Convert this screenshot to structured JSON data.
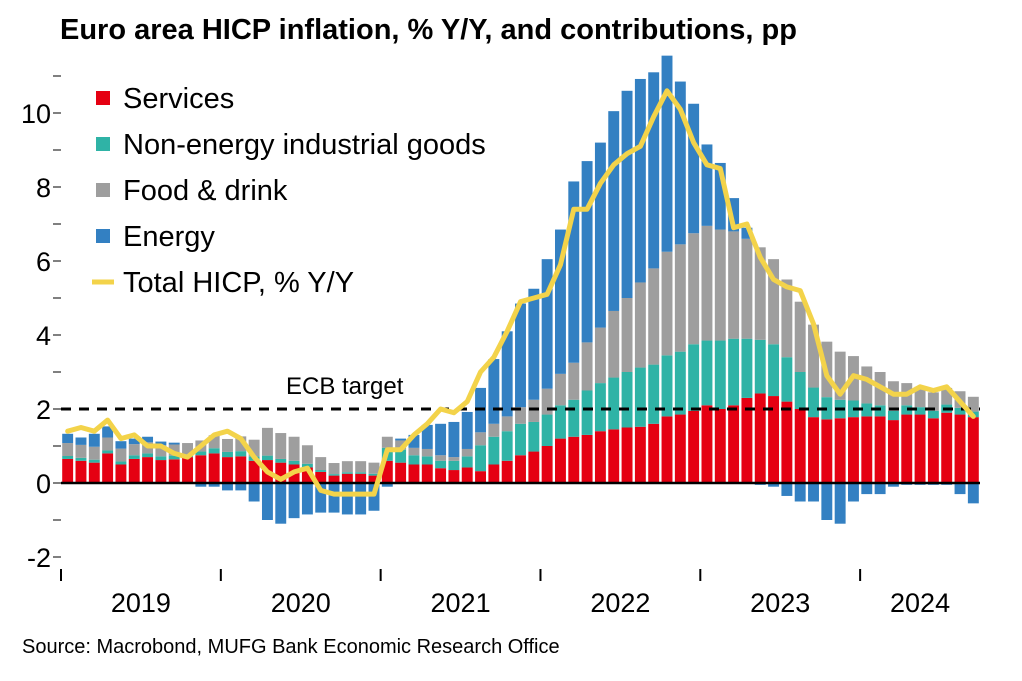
{
  "title": "Euro area HICP inflation, % Y/Y, and contributions, pp",
  "source": "Source: Macrobond, MUFG Bank Economic Research Office",
  "colors": {
    "services": "#e50012",
    "non_energy": "#2fb3a6",
    "food": "#9e9e9e",
    "energy": "#3380c2",
    "total": "#f3d34a",
    "target": "#000000"
  },
  "chart_data": {
    "type": "bar",
    "stacked": true,
    "ylim": [
      -2.5,
      11
    ],
    "yticks": [
      -2,
      0,
      2,
      4,
      6,
      8,
      10
    ],
    "year_labels": [
      "2019",
      "2020",
      "2021",
      "2022",
      "2023",
      "2024"
    ],
    "target": {
      "value": 2,
      "label": "ECB target"
    },
    "legend": [
      "Services",
      "Non-energy industrial goods",
      "Food & drink",
      "Energy",
      "Total HICP, % Y/Y"
    ],
    "legend_position": "top-left",
    "x": [
      "2019-01",
      "2019-02",
      "2019-03",
      "2019-04",
      "2019-05",
      "2019-06",
      "2019-07",
      "2019-08",
      "2019-09",
      "2019-10",
      "2019-11",
      "2019-12",
      "2020-01",
      "2020-02",
      "2020-03",
      "2020-04",
      "2020-05",
      "2020-06",
      "2020-07",
      "2020-08",
      "2020-09",
      "2020-10",
      "2020-11",
      "2020-12",
      "2021-01",
      "2021-02",
      "2021-03",
      "2021-04",
      "2021-05",
      "2021-06",
      "2021-07",
      "2021-08",
      "2021-09",
      "2021-10",
      "2021-11",
      "2021-12",
      "2022-01",
      "2022-02",
      "2022-03",
      "2022-04",
      "2022-05",
      "2022-06",
      "2022-07",
      "2022-08",
      "2022-09",
      "2022-10",
      "2022-11",
      "2022-12",
      "2023-01",
      "2023-02",
      "2023-03",
      "2023-04",
      "2023-05",
      "2023-06",
      "2023-07",
      "2023-08",
      "2023-09",
      "2023-10",
      "2023-11",
      "2023-12",
      "2024-01",
      "2024-02",
      "2024-03",
      "2024-04",
      "2024-05",
      "2024-06",
      "2024-07",
      "2024-08",
      "2024-09"
    ],
    "series": [
      {
        "name": "Services",
        "values": [
          0.65,
          0.6,
          0.55,
          0.8,
          0.5,
          0.65,
          0.7,
          0.62,
          0.64,
          0.7,
          0.75,
          0.8,
          0.7,
          0.72,
          0.6,
          0.62,
          0.55,
          0.5,
          0.42,
          0.3,
          0.2,
          0.25,
          0.25,
          0.2,
          0.6,
          0.55,
          0.5,
          0.5,
          0.4,
          0.35,
          0.42,
          0.32,
          0.5,
          0.6,
          0.75,
          0.85,
          1.0,
          1.2,
          1.25,
          1.3,
          1.4,
          1.45,
          1.5,
          1.52,
          1.6,
          1.8,
          1.85,
          1.95,
          2.1,
          2.0,
          2.1,
          2.3,
          2.42,
          2.35,
          2.2,
          2.0,
          1.78,
          1.72,
          1.75,
          1.78,
          1.8,
          1.8,
          1.7,
          1.85,
          1.85,
          1.75,
          1.9,
          1.85,
          1.78
        ]
      },
      {
        "name": "Non-energy industrial goods",
        "values": [
          0.08,
          0.08,
          0.08,
          0.08,
          0.08,
          0.1,
          0.1,
          0.1,
          0.1,
          0.08,
          0.1,
          0.14,
          0.14,
          0.14,
          0.12,
          0.12,
          0.1,
          0.1,
          0.1,
          0.05,
          0.04,
          0.04,
          0.04,
          0.05,
          0.35,
          0.35,
          0.25,
          0.22,
          0.2,
          0.25,
          0.3,
          0.7,
          0.75,
          0.8,
          0.85,
          0.8,
          0.85,
          0.9,
          1.0,
          1.2,
          1.3,
          1.4,
          1.5,
          1.6,
          1.6,
          1.65,
          1.7,
          1.8,
          1.75,
          1.85,
          1.8,
          1.6,
          1.45,
          1.4,
          1.2,
          1.0,
          0.8,
          0.6,
          0.5,
          0.45,
          0.35,
          0.3,
          0.25,
          0.25,
          0.2,
          0.2,
          0.22,
          0.18,
          0.15
        ]
      },
      {
        "name": "Food & drink",
        "values": [
          0.35,
          0.35,
          0.35,
          0.35,
          0.35,
          0.3,
          0.3,
          0.3,
          0.3,
          0.3,
          0.3,
          0.35,
          0.35,
          0.4,
          0.45,
          0.75,
          0.7,
          0.65,
          0.5,
          0.35,
          0.3,
          0.3,
          0.3,
          0.3,
          0.3,
          0.25,
          0.2,
          0.2,
          0.15,
          0.1,
          0.2,
          0.35,
          0.35,
          0.4,
          0.45,
          0.6,
          0.7,
          0.85,
          1.0,
          1.3,
          1.5,
          1.8,
          2.0,
          2.3,
          2.6,
          2.8,
          2.9,
          3.0,
          3.1,
          3.0,
          2.9,
          2.7,
          2.5,
          2.3,
          2.1,
          1.9,
          1.7,
          1.5,
          1.3,
          1.2,
          1.0,
          0.9,
          0.8,
          0.6,
          0.55,
          0.5,
          0.45,
          0.45,
          0.4
        ]
      },
      {
        "name": "Energy",
        "values": [
          0.25,
          0.2,
          0.35,
          0.3,
          0.2,
          0.15,
          0.15,
          0.1,
          0.05,
          0.0,
          -0.1,
          -0.1,
          -0.2,
          -0.2,
          -0.5,
          -1.0,
          -1.1,
          -0.95,
          -0.85,
          -0.8,
          -0.8,
          -0.85,
          -0.85,
          -0.75,
          -0.1,
          0.05,
          0.35,
          0.65,
          0.85,
          0.95,
          1.0,
          1.2,
          1.75,
          2.3,
          2.8,
          3.0,
          3.5,
          3.9,
          4.9,
          4.9,
          5.0,
          5.4,
          5.6,
          5.5,
          5.3,
          5.3,
          4.4,
          3.5,
          2.2,
          1.8,
          0.9,
          0.3,
          -0.05,
          -0.1,
          -0.35,
          -0.5,
          -0.5,
          -1.0,
          -1.1,
          -0.5,
          -0.3,
          -0.3,
          -0.1,
          -0.05,
          -0.05,
          -0.05,
          -0.05,
          -0.3,
          -0.55
        ]
      },
      {
        "name": "Total HICP, % Y/Y",
        "type": "line",
        "values": [
          1.4,
          1.5,
          1.4,
          1.7,
          1.2,
          1.3,
          1.0,
          1.0,
          0.8,
          0.7,
          1.0,
          1.3,
          1.4,
          1.2,
          0.7,
          0.3,
          0.1,
          0.3,
          0.4,
          -0.2,
          -0.3,
          -0.3,
          -0.3,
          -0.3,
          0.9,
          0.9,
          1.3,
          1.6,
          2.0,
          1.9,
          2.2,
          3.0,
          3.4,
          4.1,
          4.9,
          5.0,
          5.1,
          5.9,
          7.4,
          7.4,
          8.1,
          8.6,
          8.9,
          9.1,
          9.9,
          10.6,
          10.1,
          9.2,
          8.6,
          8.5,
          6.9,
          7.0,
          6.1,
          5.5,
          5.3,
          5.2,
          4.3,
          2.9,
          2.4,
          2.9,
          2.8,
          2.6,
          2.4,
          2.4,
          2.6,
          2.5,
          2.6,
          2.2,
          1.8
        ]
      }
    ]
  }
}
